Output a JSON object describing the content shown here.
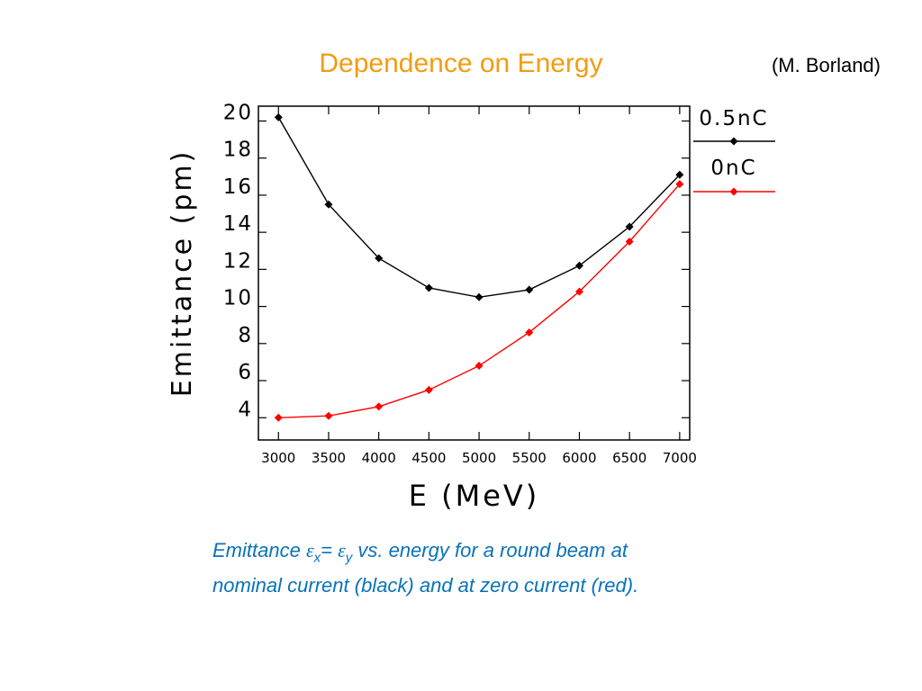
{
  "slide": {
    "title": "Dependence on Energy",
    "credit": "(M. Borland)"
  },
  "caption": {
    "lead": "Emittance ",
    "eps_symbol": "ε",
    "sub_x": "x",
    "equals": "= ",
    "sub_y": "y",
    "rest_line1": " vs. energy for a round beam at",
    "line2": "nominal current (black) and at zero current (red)."
  },
  "colors": {
    "title": "#f39c12",
    "caption": "#0a72b8",
    "series_0_5nC": "#000000",
    "series_0nC": "#ff0000"
  },
  "chart_data": {
    "type": "line",
    "xlabel": "E (MeV)",
    "ylabel": "Emittance (pm)",
    "xlim": [
      2800,
      7100
    ],
    "ylim": [
      2.8,
      20.8
    ],
    "xticks": [
      3000,
      3500,
      4000,
      4500,
      5000,
      5500,
      6000,
      6500,
      7000
    ],
    "yticks": [
      4,
      6,
      8,
      10,
      12,
      14,
      16,
      18,
      20
    ],
    "legend_position": "outside-right",
    "series": [
      {
        "name": "0.5nC",
        "color": "#000000",
        "x": [
          3000,
          3500,
          4000,
          4500,
          5000,
          5500,
          6000,
          6500,
          7000
        ],
        "y": [
          20.2,
          15.5,
          12.6,
          11.0,
          10.5,
          10.9,
          12.2,
          14.3,
          17.1
        ]
      },
      {
        "name": "0nC",
        "color": "#ff0000",
        "x": [
          3000,
          3500,
          4000,
          4500,
          5000,
          5500,
          6000,
          6500,
          7000
        ],
        "y": [
          4.0,
          4.1,
          4.6,
          5.5,
          6.8,
          8.6,
          10.8,
          13.5,
          16.6
        ]
      }
    ]
  }
}
